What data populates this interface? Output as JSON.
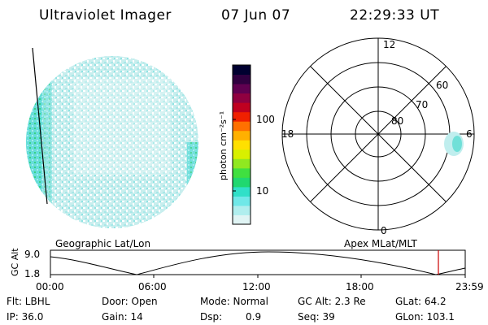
{
  "header": {
    "title": "Ultraviolet Imager",
    "date": "07 Jun 07",
    "time": "22:29:33 UT"
  },
  "colorbar": {
    "label": "photon cm⁻²s⁻¹",
    "ticks": [
      "100",
      "10"
    ],
    "colors": [
      "#e0f4f4",
      "#b0eeee",
      "#70e8e8",
      "#30e0c8",
      "#20d870",
      "#40e040",
      "#90e820",
      "#d8f000",
      "#ffe000",
      "#ffb000",
      "#ff7000",
      "#f02000",
      "#c00020",
      "#900040",
      "#600050",
      "#300040",
      "#000030"
    ]
  },
  "polar": {
    "mlt_labels": [
      "12",
      "18",
      "6",
      "0"
    ],
    "lat_labels": [
      "60",
      "70",
      "80"
    ]
  },
  "timeline": {
    "left_label": "Geographic Lat/Lon",
    "right_label": "Apex MLat/MLT",
    "axis_label": "GC Alt",
    "y_ticks": [
      "9.0",
      "1.8"
    ],
    "x_ticks": [
      "00:00",
      "06:00",
      "12:00",
      "18:00",
      "23:59"
    ],
    "marker_color": "#cc0000"
  },
  "info": {
    "flt": "Flt: LBHL",
    "ip": "IP: 36.0",
    "door": "Door: Open",
    "gain": "Gain: 14",
    "mode": "Mode: Normal",
    "dsp_label": "Dsp:",
    "dsp_value": "0.9",
    "gcalt": "GC Alt: 2.3 Re",
    "seq": "Seq: 39",
    "glat": "GLat: 64.2",
    "glon": "GLon: 103.1"
  }
}
